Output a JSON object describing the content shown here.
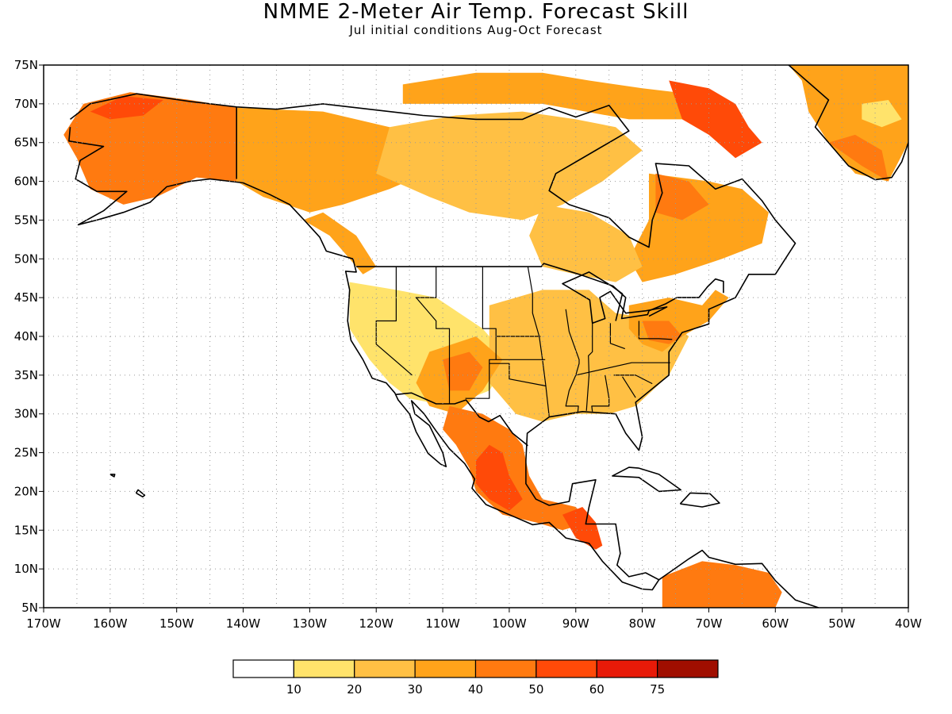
{
  "title": "NMME 2-Meter Air Temp. Forecast Skill",
  "subtitle": "Jul initial conditions  Aug-Oct Forecast",
  "map": {
    "lon_range": [
      -170,
      -40
    ],
    "lat_range": [
      5,
      75
    ],
    "grid": "dotted",
    "lat_labels": [
      "75N",
      "70N",
      "65N",
      "60N",
      "55N",
      "50N",
      "45N",
      "40N",
      "35N",
      "30N",
      "25N",
      "20N",
      "15N",
      "10N",
      "5N"
    ],
    "lon_labels": [
      "170W",
      "160W",
      "150W",
      "140W",
      "130W",
      "120W",
      "110W",
      "100W",
      "90W",
      "80W",
      "70W",
      "60W",
      "50W",
      "40W"
    ]
  },
  "legend": {
    "colors": [
      "#ffffff",
      "#ffe36b",
      "#ffc044",
      "#ffa31a",
      "#ff7a10",
      "#ff4a08",
      "#e81a08",
      "#a00e00"
    ],
    "labels": [
      "10",
      "20",
      "30",
      "40",
      "50",
      "60",
      "75"
    ]
  },
  "regions": [
    {
      "name": "alaska",
      "level": 4,
      "poly": [
        [
          -164,
          70
        ],
        [
          -157,
          71.5
        ],
        [
          -148,
          70.5
        ],
        [
          -141,
          69.5
        ],
        [
          -141,
          60
        ],
        [
          -147,
          60.5
        ],
        [
          -153,
          58
        ],
        [
          -158,
          57
        ],
        [
          -163,
          59
        ],
        [
          -165,
          63
        ],
        [
          -167,
          66
        ]
      ]
    },
    {
      "name": "north-alaska",
      "level": 5,
      "poly": [
        [
          -163,
          69
        ],
        [
          -158,
          71
        ],
        [
          -152,
          70.5
        ],
        [
          -155,
          68.5
        ],
        [
          -160,
          68
        ]
      ]
    },
    {
      "name": "yukon-nwt",
      "level": 3,
      "poly": [
        [
          -141,
          69.5
        ],
        [
          -128,
          69
        ],
        [
          -118,
          67
        ],
        [
          -112,
          65
        ],
        [
          -110,
          62
        ],
        [
          -118,
          59
        ],
        [
          -125,
          57
        ],
        [
          -130,
          56
        ],
        [
          -137,
          58
        ],
        [
          -141,
          60
        ]
      ]
    },
    {
      "name": "canada-north-yellow",
      "level": 2,
      "poly": [
        [
          -118,
          67
        ],
        [
          -108,
          68.5
        ],
        [
          -98,
          69
        ],
        [
          -90,
          68
        ],
        [
          -84,
          67
        ],
        [
          -80,
          64
        ],
        [
          -86,
          60
        ],
        [
          -92,
          57
        ],
        [
          -98,
          55
        ],
        [
          -106,
          56
        ],
        [
          -112,
          58
        ],
        [
          -120,
          61
        ]
      ]
    },
    {
      "name": "arctic-islands",
      "level": 3,
      "poly": [
        [
          -116,
          72.5
        ],
        [
          -105,
          74
        ],
        [
          -95,
          74
        ],
        [
          -88,
          73
        ],
        [
          -80,
          72
        ],
        [
          -70,
          71
        ],
        [
          -72,
          68
        ],
        [
          -82,
          68
        ],
        [
          -95,
          70
        ],
        [
          -108,
          70
        ],
        [
          -116,
          70
        ]
      ]
    },
    {
      "name": "baffin-red",
      "level": 5,
      "poly": [
        [
          -76,
          73
        ],
        [
          -70,
          72
        ],
        [
          -66,
          70
        ],
        [
          -64,
          67
        ],
        [
          -62,
          65
        ],
        [
          -66,
          63
        ],
        [
          -70,
          66
        ],
        [
          -74,
          68
        ]
      ]
    },
    {
      "name": "quebec-labrador",
      "level": 3,
      "poly": [
        [
          -79,
          61
        ],
        [
          -70,
          60
        ],
        [
          -65,
          59
        ],
        [
          -61,
          56
        ],
        [
          -62,
          52
        ],
        [
          -68,
          50
        ],
        [
          -75,
          48
        ],
        [
          -80,
          47
        ],
        [
          -82,
          50
        ],
        [
          -79,
          55
        ]
      ]
    },
    {
      "name": "quebec-north",
      "level": 4,
      "poly": [
        [
          -78,
          61
        ],
        [
          -73,
          60
        ],
        [
          -70,
          57
        ],
        [
          -74,
          55
        ],
        [
          -78,
          56
        ]
      ]
    },
    {
      "name": "ontario",
      "level": 2,
      "poly": [
        [
          -95,
          57
        ],
        [
          -88,
          56
        ],
        [
          -82,
          53
        ],
        [
          -80,
          49
        ],
        [
          -84,
          47
        ],
        [
          -90,
          48
        ],
        [
          -95,
          49
        ],
        [
          -97,
          53
        ]
      ]
    },
    {
      "name": "bc-coast",
      "level": 3,
      "poly": [
        [
          -131,
          55
        ],
        [
          -127,
          53
        ],
        [
          -124,
          50
        ],
        [
          -122,
          48
        ],
        [
          -120,
          49
        ],
        [
          -123,
          53
        ],
        [
          -128,
          56
        ]
      ]
    },
    {
      "name": "us-west-yellow",
      "level": 1,
      "poly": [
        [
          -124,
          47
        ],
        [
          -117,
          46
        ],
        [
          -111,
          45
        ],
        [
          -104,
          41
        ],
        [
          -100,
          37
        ],
        [
          -103,
          33
        ],
        [
          -109,
          31
        ],
        [
          -115,
          32
        ],
        [
          -118,
          34
        ],
        [
          -121,
          37
        ],
        [
          -124,
          41
        ]
      ]
    },
    {
      "name": "us-central",
      "level": 2,
      "poly": [
        [
          -103,
          44
        ],
        [
          -95,
          46
        ],
        [
          -88,
          46
        ],
        [
          -84,
          43
        ],
        [
          -76,
          42
        ],
        [
          -73,
          40
        ],
        [
          -76,
          35
        ],
        [
          -81,
          31
        ],
        [
          -85,
          30
        ],
        [
          -90,
          30
        ],
        [
          -95,
          29
        ],
        [
          -99,
          30
        ],
        [
          -103,
          34
        ]
      ]
    },
    {
      "name": "northeast",
      "level": 3,
      "poly": [
        [
          -82,
          44
        ],
        [
          -76,
          45
        ],
        [
          -71,
          44
        ],
        [
          -69,
          46
        ],
        [
          -67,
          45
        ],
        [
          -70,
          42
        ],
        [
          -74,
          40
        ],
        [
          -77,
          38
        ],
        [
          -80,
          39
        ],
        [
          -82,
          41
        ]
      ]
    },
    {
      "name": "pennsylvania-red",
      "level": 4,
      "poly": [
        [
          -80,
          42
        ],
        [
          -76,
          42
        ],
        [
          -74,
          40
        ],
        [
          -76,
          39
        ],
        [
          -79,
          39.5
        ]
      ]
    },
    {
      "name": "southwest",
      "level": 3,
      "poly": [
        [
          -112,
          38
        ],
        [
          -105,
          40
        ],
        [
          -101,
          37
        ],
        [
          -104,
          33
        ],
        [
          -108,
          30
        ],
        [
          -112,
          31
        ],
        [
          -114,
          34
        ]
      ]
    },
    {
      "name": "four-corners-red",
      "level": 4,
      "poly": [
        [
          -110,
          37
        ],
        [
          -106,
          38
        ],
        [
          -104,
          36
        ],
        [
          -106,
          33
        ],
        [
          -109,
          33
        ]
      ]
    },
    {
      "name": "mexico",
      "level": 4,
      "poly": [
        [
          -109,
          31
        ],
        [
          -104,
          30
        ],
        [
          -100,
          28
        ],
        [
          -98,
          26
        ],
        [
          -97,
          22
        ],
        [
          -95,
          19
        ],
        [
          -90,
          18
        ],
        [
          -88,
          16
        ],
        [
          -92,
          15
        ],
        [
          -96,
          16
        ],
        [
          -101,
          17
        ],
        [
          -105,
          20
        ],
        [
          -106,
          23
        ],
        [
          -108,
          26
        ],
        [
          -110,
          28
        ]
      ]
    },
    {
      "name": "mexico-core",
      "level": 5,
      "poly": [
        [
          -105,
          24
        ],
        [
          -103,
          26
        ],
        [
          -101,
          25
        ],
        [
          -100,
          22
        ],
        [
          -98,
          19
        ],
        [
          -100,
          17.5
        ],
        [
          -103,
          19
        ],
        [
          -105,
          21
        ]
      ]
    },
    {
      "name": "central-america",
      "level": 5,
      "poly": [
        [
          -92,
          17
        ],
        [
          -89,
          18
        ],
        [
          -87,
          16
        ],
        [
          -86,
          13
        ],
        [
          -87,
          12.5
        ],
        [
          -90,
          14
        ]
      ]
    },
    {
      "name": "south-america",
      "level": 4,
      "poly": [
        [
          -77,
          9
        ],
        [
          -71,
          11
        ],
        [
          -66,
          10.5
        ],
        [
          -61,
          9.5
        ],
        [
          -59,
          7
        ],
        [
          -60,
          5
        ],
        [
          -77,
          5
        ]
      ]
    },
    {
      "name": "greenland",
      "level": 3,
      "poly": [
        [
          -58,
          75
        ],
        [
          -40,
          75
        ],
        [
          -40,
          65
        ],
        [
          -43,
          60
        ],
        [
          -48,
          61
        ],
        [
          -52,
          65
        ],
        [
          -55,
          69
        ],
        [
          -56,
          73
        ]
      ]
    },
    {
      "name": "greenland-south",
      "level": 4,
      "poly": [
        [
          -52,
          65
        ],
        [
          -47,
          62
        ],
        [
          -43,
          60
        ],
        [
          -44,
          64
        ],
        [
          -48,
          66
        ]
      ]
    },
    {
      "name": "greenland-pale",
      "level": 1,
      "poly": [
        [
          -47,
          70
        ],
        [
          -43,
          70.5
        ],
        [
          -41,
          68
        ],
        [
          -44,
          67
        ],
        [
          -47,
          68
        ]
      ]
    }
  ]
}
